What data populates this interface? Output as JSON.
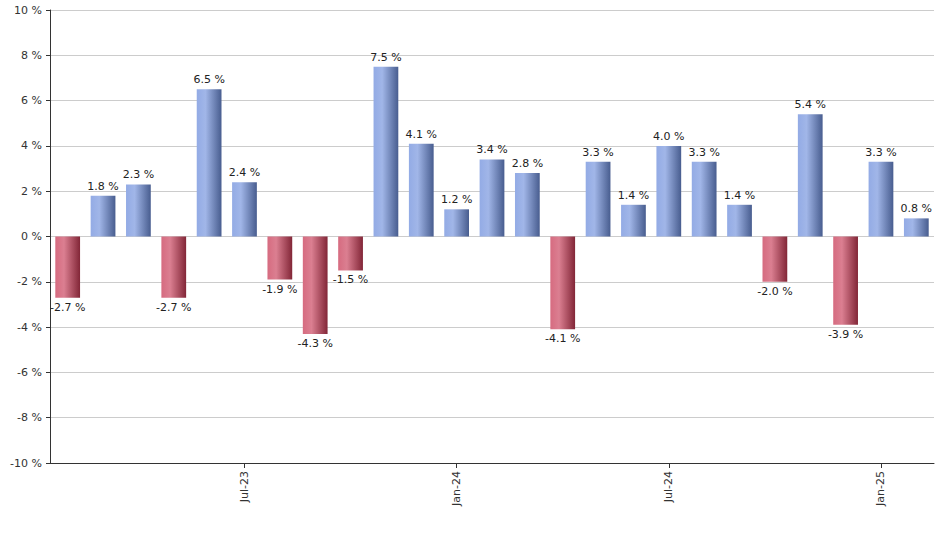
{
  "chart_data": {
    "type": "bar",
    "categories": [
      null,
      null,
      null,
      null,
      null,
      "Jul-23",
      null,
      null,
      null,
      null,
      null,
      "Jan-24",
      null,
      null,
      null,
      null,
      null,
      "Jul-24",
      null,
      null,
      null,
      null,
      null,
      "Jan-25",
      null
    ],
    "values": [
      -2.7,
      1.8,
      2.3,
      -2.7,
      6.5,
      2.4,
      -1.9,
      -4.3,
      -1.5,
      7.5,
      4.1,
      1.2,
      3.4,
      2.8,
      -4.1,
      3.3,
      1.4,
      4.0,
      3.3,
      1.4,
      -2.0,
      5.4,
      -3.9,
      3.3,
      0.8
    ],
    "value_labels": [
      "-2.7 %",
      "1.8 %",
      "2.3 %",
      "-2.7 %",
      "6.5 %",
      "2.4 %",
      "-1.9 %",
      "-4.3 %",
      "-1.5 %",
      "7.5 %",
      "4.1 %",
      "1.2 %",
      "3.4 %",
      "2.8 %",
      "-4.1 %",
      "3.3 %",
      "1.4 %",
      "4.0 %",
      "3.3 %",
      "1.4 %",
      "-2.0 %",
      "5.4 %",
      "-3.9 %",
      "3.3 %",
      "0.8 %"
    ],
    "colors": [
      "#c83a55",
      "#6f8fdc",
      "#6f8fdc",
      "#c83a55",
      "#6f8fdc",
      "#6f8fdc",
      "#c83a55",
      "#c83a55",
      "#c83a55",
      "#6f8fdc",
      "#6f8fdc",
      "#6f8fdc",
      "#6f8fdc",
      "#6f8fdc",
      "#c83a55",
      "#6f8fdc",
      "#6f8fdc",
      "#6f8fdc",
      "#6f8fdc",
      "#6f8fdc",
      "#c83a55",
      "#6f8fdc",
      "#c83a55",
      "#6f8fdc",
      "#6f8fdc"
    ],
    "ylim": [
      -10,
      10
    ],
    "yticks": [
      {
        "value": -10,
        "label": "-10 %"
      },
      {
        "value": -8,
        "label": "-8 %"
      },
      {
        "value": -6,
        "label": "-6 %"
      },
      {
        "value": -4,
        "label": "-4 %"
      },
      {
        "value": -2,
        "label": "-2 %"
      },
      {
        "value": 0,
        "label": "0 %"
      },
      {
        "value": 2,
        "label": "2 %"
      },
      {
        "value": 4,
        "label": "4 %"
      },
      {
        "value": 6,
        "label": "6 %"
      },
      {
        "value": 8,
        "label": "8 %"
      },
      {
        "value": 10,
        "label": "10 %"
      }
    ],
    "grid": true,
    "data_labels": true
  }
}
